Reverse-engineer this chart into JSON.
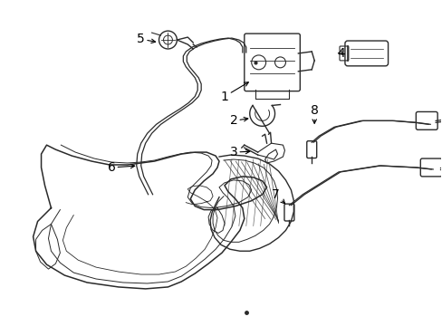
{
  "bg_color": "#ffffff",
  "line_color": "#2a2a2a",
  "label_color": "#000000",
  "font_size": 10,
  "lw": 1.0
}
